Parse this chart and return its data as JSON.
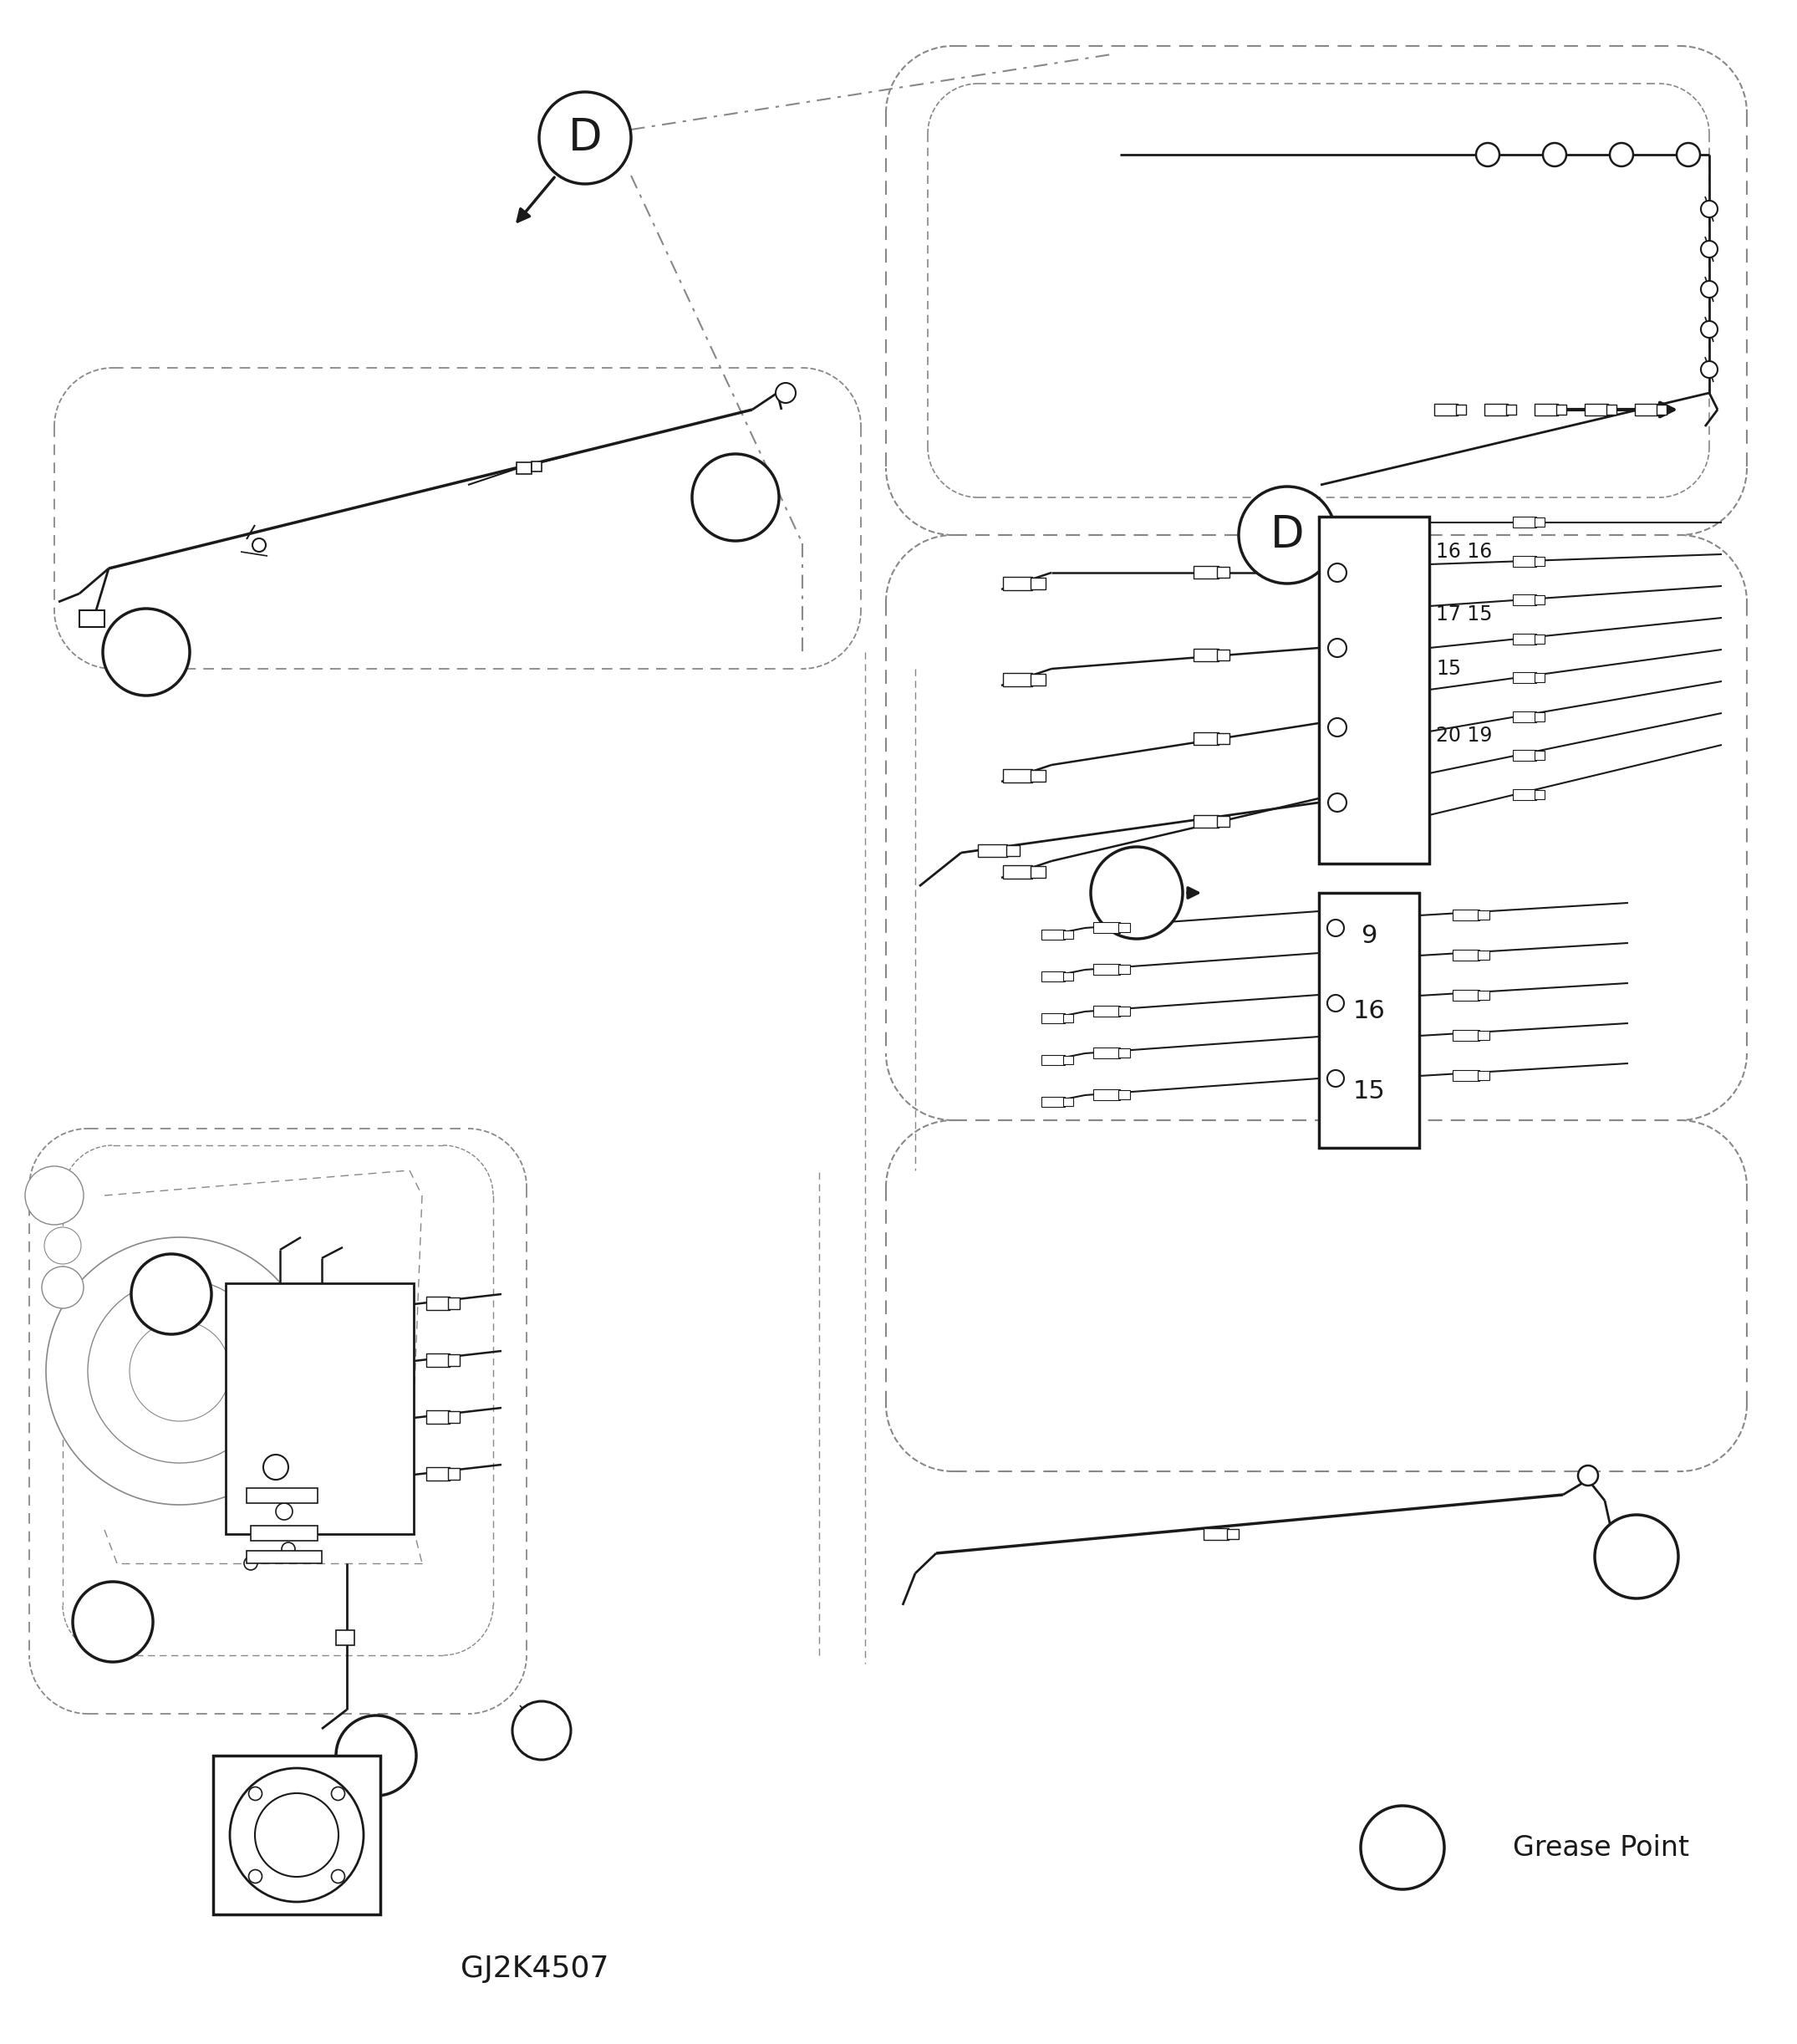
{
  "bg_color": "#ffffff",
  "lc": "#1a1a1a",
  "dc": "#888888",
  "fig_width": 21.5,
  "fig_height": 24.45,
  "title": "GJ2K4507",
  "grease_label": "Grease Point",
  "box1_rows": [
    "16 16",
    "17 15",
    "20 19"
  ],
  "box2_rows": [
    "9",
    "16",
    "15"
  ]
}
